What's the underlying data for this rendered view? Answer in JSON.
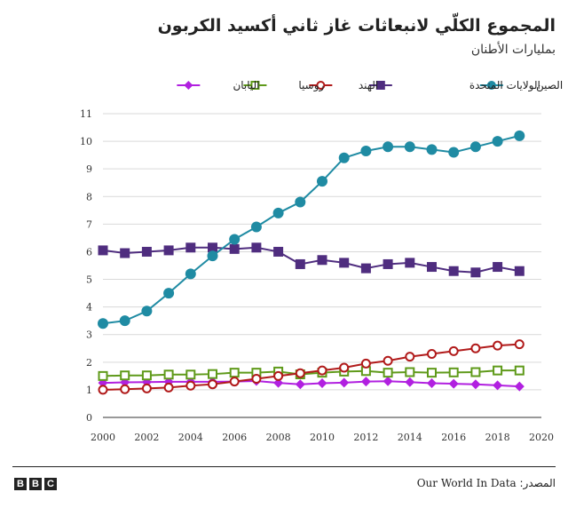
{
  "header": {
    "title": "المجموع الكلّي لانبعاثات غاز ثاني أكسيد الكربون",
    "subtitle": "بمليارات الأطنان"
  },
  "footer": {
    "logo_letters": [
      "B",
      "B",
      "C"
    ],
    "source_label": "المصدر:",
    "source_value": "Our World In Data"
  },
  "colors": {
    "china": "#1f8ba3",
    "usa": "#4f2d7f",
    "india": "#b11a1a",
    "russia": "#5f9a1a",
    "japan": "#b120e0"
  },
  "chart_data": {
    "type": "line",
    "title": "المجموع الكلّي لانبعاثات غاز ثاني أكسيد الكربون",
    "subtitle": "بمليارات الأطنان",
    "xlabel": "",
    "ylabel": "",
    "xlim": [
      2000,
      2020
    ],
    "ylim": [
      0,
      11
    ],
    "x_ticks": [
      2000,
      2002,
      2004,
      2006,
      2008,
      2010,
      2012,
      2014,
      2016,
      2018,
      2020
    ],
    "y_ticks": [
      0,
      1,
      2,
      3,
      4,
      5,
      6,
      7,
      8,
      9,
      10,
      11
    ],
    "grid": "horizontal",
    "legend_position": "top",
    "x": [
      2000,
      2001,
      2002,
      2003,
      2004,
      2005,
      2006,
      2007,
      2008,
      2009,
      2010,
      2011,
      2012,
      2013,
      2014,
      2015,
      2016,
      2017,
      2018,
      2019
    ],
    "series": [
      {
        "key": "china",
        "name": "الصين",
        "marker": "filled-circle",
        "values": [
          3.4,
          3.5,
          3.85,
          4.5,
          5.2,
          5.85,
          6.45,
          6.9,
          7.4,
          7.8,
          8.55,
          9.4,
          9.65,
          9.8,
          9.8,
          9.7,
          9.6,
          9.8,
          10.0,
          10.2
        ]
      },
      {
        "key": "usa",
        "name": "الولايات المتحدة",
        "marker": "filled-square",
        "values": [
          6.05,
          5.95,
          6.0,
          6.05,
          6.15,
          6.15,
          6.1,
          6.15,
          6.0,
          5.55,
          5.7,
          5.6,
          5.4,
          5.55,
          5.6,
          5.45,
          5.3,
          5.25,
          5.45,
          5.3
        ]
      },
      {
        "key": "india",
        "name": "الهند",
        "marker": "open-circle",
        "values": [
          1.0,
          1.02,
          1.05,
          1.08,
          1.15,
          1.2,
          1.3,
          1.4,
          1.5,
          1.6,
          1.7,
          1.8,
          1.95,
          2.05,
          2.2,
          2.3,
          2.4,
          2.5,
          2.6,
          2.65
        ]
      },
      {
        "key": "russia",
        "name": "روسيا",
        "marker": "open-square",
        "values": [
          1.5,
          1.52,
          1.52,
          1.55,
          1.55,
          1.57,
          1.62,
          1.62,
          1.66,
          1.56,
          1.62,
          1.66,
          1.68,
          1.62,
          1.64,
          1.62,
          1.63,
          1.64,
          1.7,
          1.7
        ]
      },
      {
        "key": "japan",
        "name": "اليابان",
        "marker": "filled-diamond",
        "values": [
          1.25,
          1.27,
          1.28,
          1.29,
          1.29,
          1.29,
          1.3,
          1.32,
          1.25,
          1.2,
          1.24,
          1.26,
          1.3,
          1.31,
          1.28,
          1.24,
          1.22,
          1.2,
          1.16,
          1.12
        ]
      }
    ],
    "legend_order": [
      "china",
      "usa",
      "india",
      "russia",
      "japan"
    ]
  }
}
